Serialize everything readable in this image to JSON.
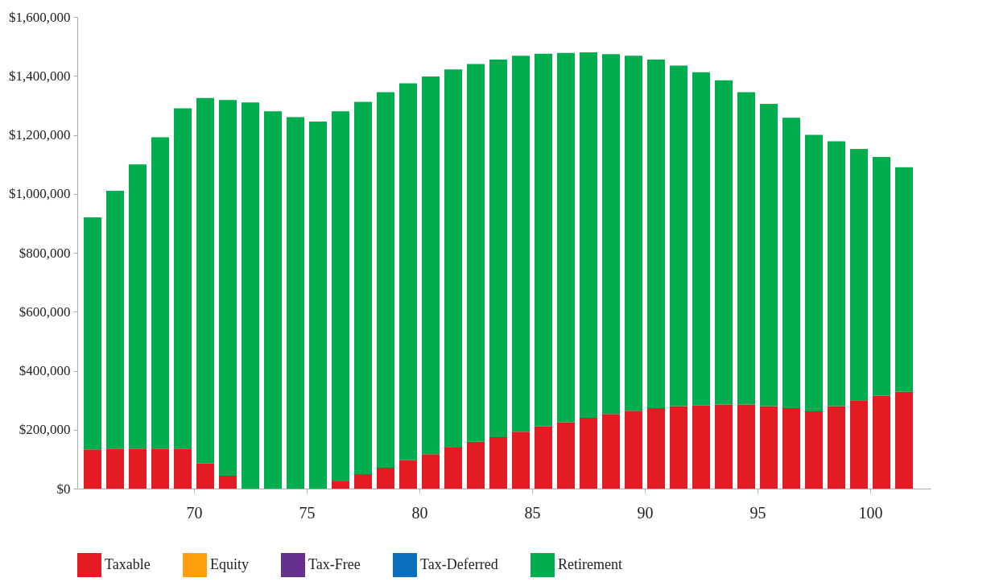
{
  "chart_data": {
    "type": "bar",
    "stacked": true,
    "legend": "bottom",
    "x": [
      65.5,
      66.5,
      67.5,
      68.5,
      69.5,
      70.5,
      71.5,
      72.5,
      73.5,
      74.5,
      75.5,
      76.5,
      77.5,
      78.5,
      79.5,
      80.5,
      81.5,
      82.5,
      83.5,
      84.5,
      85.5,
      86.5,
      87.5,
      88.5,
      89.5,
      90.5,
      91.5,
      92.5,
      93.5,
      94.5,
      95.5,
      96.5,
      97.5,
      98.5,
      99.5,
      100.5,
      101.5
    ],
    "xlim": [
      65,
      102.5
    ],
    "xticks": [
      70,
      75,
      80,
      85,
      90,
      95,
      100
    ],
    "ylim": [
      0,
      1600000
    ],
    "yticks": [
      {
        "value": 0,
        "label": "$0"
      },
      {
        "value": 200000,
        "label": "$200,000"
      },
      {
        "value": 400000,
        "label": "$400,000"
      },
      {
        "value": 600000,
        "label": "$600,000"
      },
      {
        "value": 800000,
        "label": "$800,000"
      },
      {
        "value": 1000000,
        "label": "$1,000,000"
      },
      {
        "value": 1200000,
        "label": "$1,200,000"
      },
      {
        "value": 1400000,
        "label": "$1,400,000"
      },
      {
        "value": 1600000,
        "label": "$1,600,000"
      }
    ],
    "series": [
      {
        "name": "Taxable",
        "color": "#e31b23",
        "values": [
          133000,
          136000,
          136000,
          136000,
          136000,
          85000,
          44000,
          0,
          0,
          0,
          0,
          27000,
          49000,
          71000,
          96000,
          117000,
          139000,
          159000,
          175000,
          193000,
          211000,
          225000,
          240000,
          253000,
          264000,
          273000,
          280000,
          282000,
          285000,
          285000,
          280000,
          273000,
          262000,
          280000,
          300000,
          315000,
          328000
        ]
      },
      {
        "name": "Equity",
        "color": "#ff9e0d",
        "values": [
          0,
          0,
          0,
          0,
          0,
          0,
          0,
          0,
          0,
          0,
          0,
          0,
          0,
          0,
          0,
          0,
          0,
          0,
          0,
          0,
          0,
          0,
          0,
          0,
          0,
          0,
          0,
          0,
          0,
          0,
          0,
          0,
          0,
          0,
          0,
          0,
          0
        ]
      },
      {
        "name": "Tax-Free",
        "color": "#66308f",
        "values": [
          0,
          0,
          0,
          0,
          0,
          0,
          0,
          0,
          0,
          0,
          0,
          0,
          0,
          0,
          0,
          0,
          0,
          0,
          0,
          0,
          0,
          0,
          0,
          0,
          0,
          0,
          0,
          0,
          0,
          0,
          0,
          0,
          0,
          0,
          0,
          0,
          0
        ]
      },
      {
        "name": "Tax-Deferred",
        "color": "#0a6fbd",
        "values": [
          0,
          0,
          0,
          0,
          0,
          0,
          0,
          0,
          0,
          0,
          0,
          0,
          0,
          0,
          0,
          0,
          0,
          0,
          0,
          0,
          0,
          0,
          0,
          0,
          0,
          0,
          0,
          0,
          0,
          0,
          0,
          0,
          0,
          0,
          0,
          0,
          0
        ]
      },
      {
        "name": "Retirement",
        "color": "#00ad4f",
        "values": [
          787000,
          874000,
          964000,
          1056000,
          1154000,
          1240000,
          1274000,
          1310000,
          1280000,
          1260000,
          1245000,
          1253000,
          1263000,
          1274000,
          1279000,
          1281000,
          1283000,
          1281000,
          1280000,
          1275000,
          1264000,
          1253000,
          1240000,
          1221000,
          1204000,
          1182000,
          1155000,
          1130000,
          1100000,
          1060000,
          1025000,
          985000,
          938000,
          898000,
          852000,
          810000,
          762000
        ]
      }
    ]
  }
}
